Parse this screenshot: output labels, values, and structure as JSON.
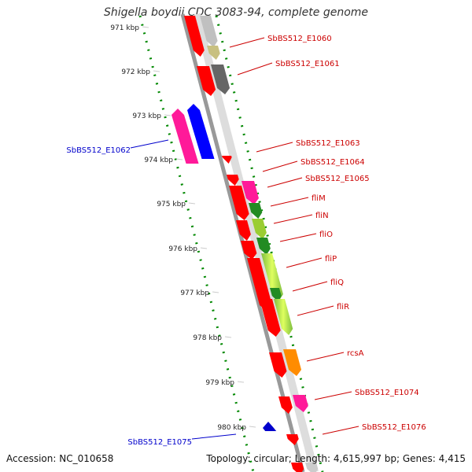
{
  "title": "Shigella boydii CDC 3083-94, complete genome",
  "footer": {
    "accession": "Accession: NC_010658",
    "summary": "Topology: circular; Length: 4,615,997 bp; Genes: 4,415"
  },
  "scale_labels": [
    "971 kbp",
    "972 kbp",
    "973 kbp",
    "974 kbp",
    "975 kbp",
    "976 kbp",
    "977 kbp",
    "978 kbp",
    "979 kbp",
    "980 kbp"
  ],
  "gene_labels": {
    "right": [
      "SbBS512_E1060",
      "SbBS512_E1061",
      "SbBS512_E1063",
      "SbBS512_E1064",
      "SbBS512_E1065",
      "fliM",
      "fliN",
      "fliO",
      "fliP",
      "fliQ",
      "fliR",
      "rcsA",
      "SbBS512_E1074",
      "SbBS512_E1076"
    ],
    "left": [
      "SbBS512_E1062",
      "SbBS512_E1075"
    ]
  },
  "colors": {
    "cds": "#ff0000",
    "label_right": "#cc0000",
    "label_left": "#0000cc",
    "scale_dots": "#008800",
    "backbone": "#888888"
  }
}
